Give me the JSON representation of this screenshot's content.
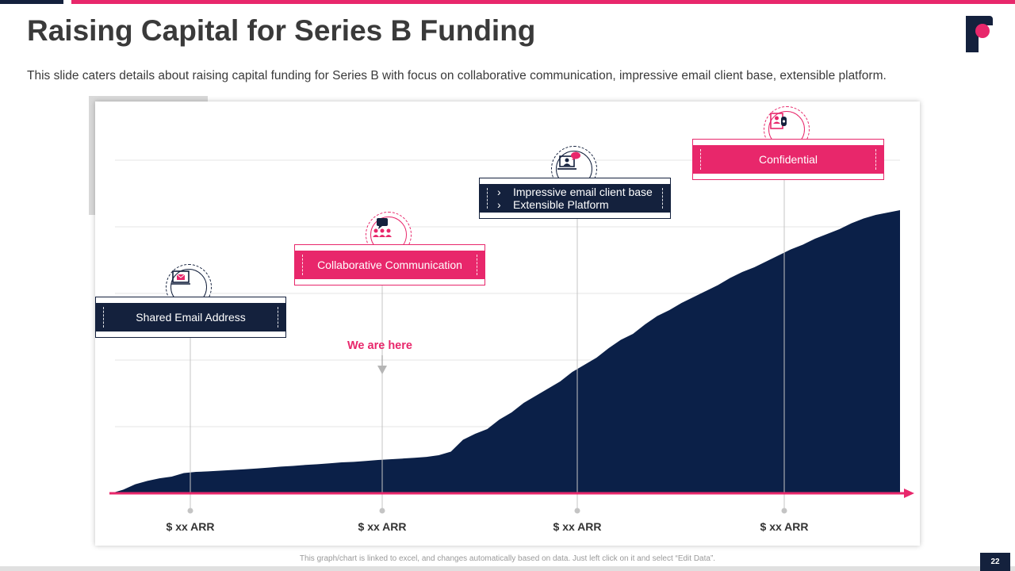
{
  "page": {
    "title": "Raising Capital for Series B Funding",
    "subtitle": "This slide caters details about raising capital funding for Series B with focus on collaborative communication, impressive email client base, extensible platform.",
    "footnote": "This graph/chart is linked to excel, and changes automatically based on data. Just left click on it and select “Edit Data”.",
    "page_number": "22"
  },
  "colors": {
    "navy": "#14213d",
    "pink": "#e8276b",
    "chart_fill": "#0b2048",
    "grid": "#e6e6e6",
    "axis": "#e8276b"
  },
  "milestones": [
    {
      "label": "Shared Email Address",
      "style": "navy",
      "icon": "mail-icon",
      "tick": "$ xx ARR"
    },
    {
      "label": "Collaborative Communication",
      "style": "pink",
      "icon": "chat-people-icon",
      "tick": "$ xx ARR"
    },
    {
      "bullets": [
        "Impressive email client base",
        "Extensible Platform"
      ],
      "style": "navy",
      "icon": "laptop-user-icon",
      "tick": "$ xx ARR"
    },
    {
      "label": "Confidential",
      "style": "pink",
      "icon": "id-badge-icon",
      "tick": "$ xx ARR"
    }
  ],
  "marker": {
    "text": "We are here",
    "bullet_glyph": "›"
  },
  "chart_data": {
    "type": "area",
    "title": "",
    "xlabel": "",
    "ylabel": "",
    "grid": true,
    "legend": "none",
    "x_ticks": [
      "$ xx ARR",
      "$ xx ARR",
      "$ xx ARR",
      "$ xx ARR"
    ],
    "y": [
      0,
      1.5,
      3.8,
      5.2,
      6.3,
      7.0,
      8.5,
      9.0,
      9.2,
      9.5,
      9.8,
      10.1,
      10.4,
      10.8,
      11.2,
      11.5,
      11.9,
      12.2,
      12.6,
      13.0,
      13.2,
      13.6,
      14.0,
      14.3,
      14.6,
      14.9,
      15.3,
      16.0,
      17.5,
      22.5,
      25.0,
      27.0,
      31.0,
      34.0,
      38.0,
      41.0,
      44.0,
      47.0,
      51.0,
      54.0,
      57.0,
      61.0,
      64.5,
      67.0,
      71.0,
      74.5,
      77.0,
      80.0,
      82.5,
      85.0,
      87.5,
      90.5,
      93.0,
      95.0,
      97.5,
      100.0,
      102.5,
      104.5,
      107.0,
      109.0,
      111.0,
      113.5,
      115.5,
      117.0,
      118.0,
      119.0
    ],
    "ylim": [
      0,
      140
    ]
  }
}
